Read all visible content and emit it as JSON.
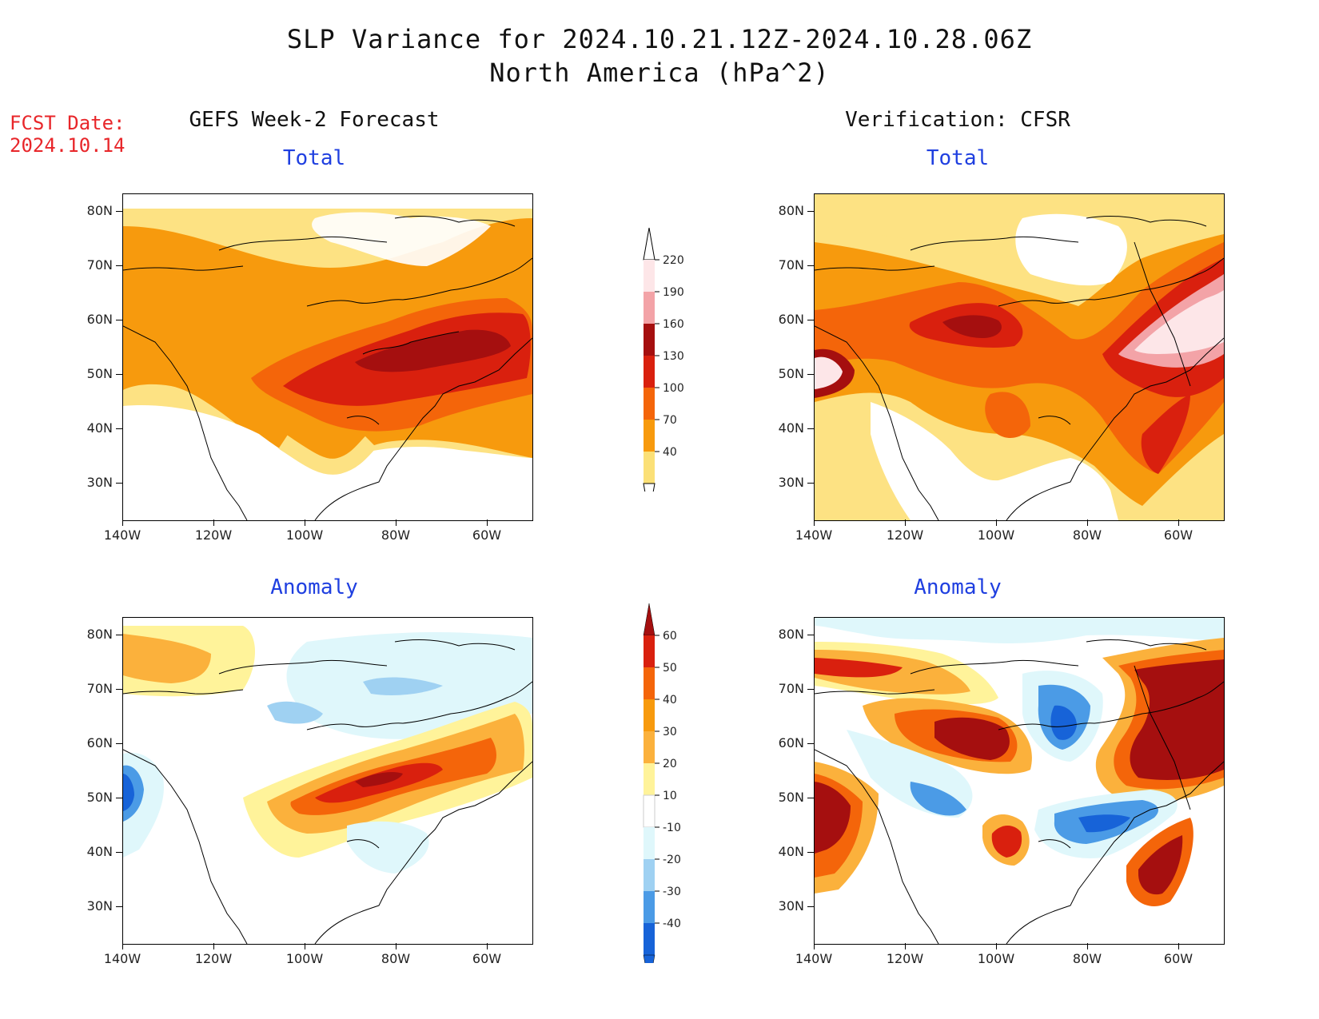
{
  "header": {
    "title_line1": "SLP Variance for 2024.10.21.12Z-2024.10.28.06Z",
    "title_line2": "North America (hPa^2)",
    "fcst_line1": "FCST Date:",
    "fcst_line2": "2024.10.14"
  },
  "panels": {
    "left_title": "GEFS Week-2 Forecast",
    "right_title": "Verification: CFSR",
    "total_label": "Total",
    "anomaly_label": "Anomaly"
  },
  "axes": {
    "lat_ticks": [
      "80N",
      "70N",
      "60N",
      "50N",
      "40N",
      "30N"
    ],
    "lon_ticks": [
      "140W",
      "120W",
      "100W",
      "80W",
      "60W"
    ]
  },
  "colorbars": {
    "total": {
      "labels": [
        "220",
        "190",
        "160",
        "130",
        "100",
        "70",
        "40"
      ],
      "colors": [
        "#fde6e8",
        "#f3a3a7",
        "#a50f0f",
        "#d9200e",
        "#f4650a",
        "#f79a0d",
        "#fbe077"
      ]
    },
    "anomaly": {
      "labels": [
        "60",
        "50",
        "40",
        "30",
        "20",
        "10",
        "-10",
        "-20",
        "-30",
        "-40"
      ],
      "colors": [
        "#a50f0f",
        "#d9200e",
        "#f4650a",
        "#f79a0d",
        "#fbb13c",
        "#fff39a",
        "#ffffff",
        "#dff7fb",
        "#9fd1f2",
        "#4b9be6",
        "#1763d8"
      ]
    }
  }
}
